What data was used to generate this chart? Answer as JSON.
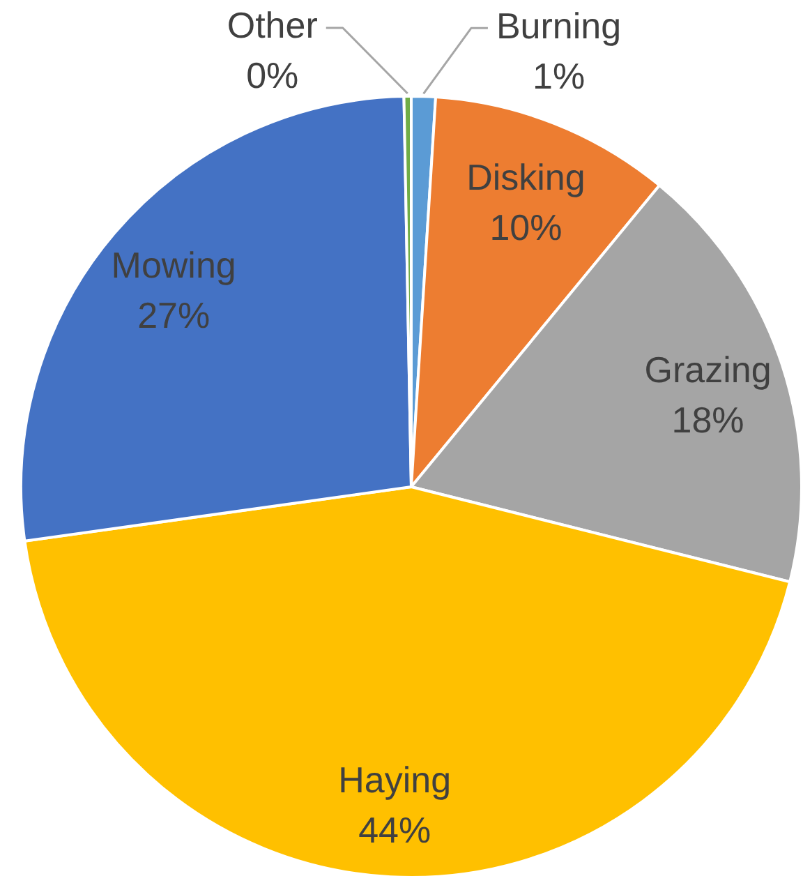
{
  "chart_data": {
    "type": "pie",
    "categories": [
      "Burning",
      "Disking",
      "Grazing",
      "Haying",
      "Mowing",
      "Other"
    ],
    "values": [
      1,
      10,
      18,
      44,
      27,
      0.3
    ],
    "colors": [
      "#5b9bd5",
      "#ed7d31",
      "#a5a5a5",
      "#ffc000",
      "#4472c4",
      "#70ad47"
    ],
    "value_labels": [
      "1%",
      "10%",
      "18%",
      "44%",
      "27%",
      "0%"
    ]
  }
}
